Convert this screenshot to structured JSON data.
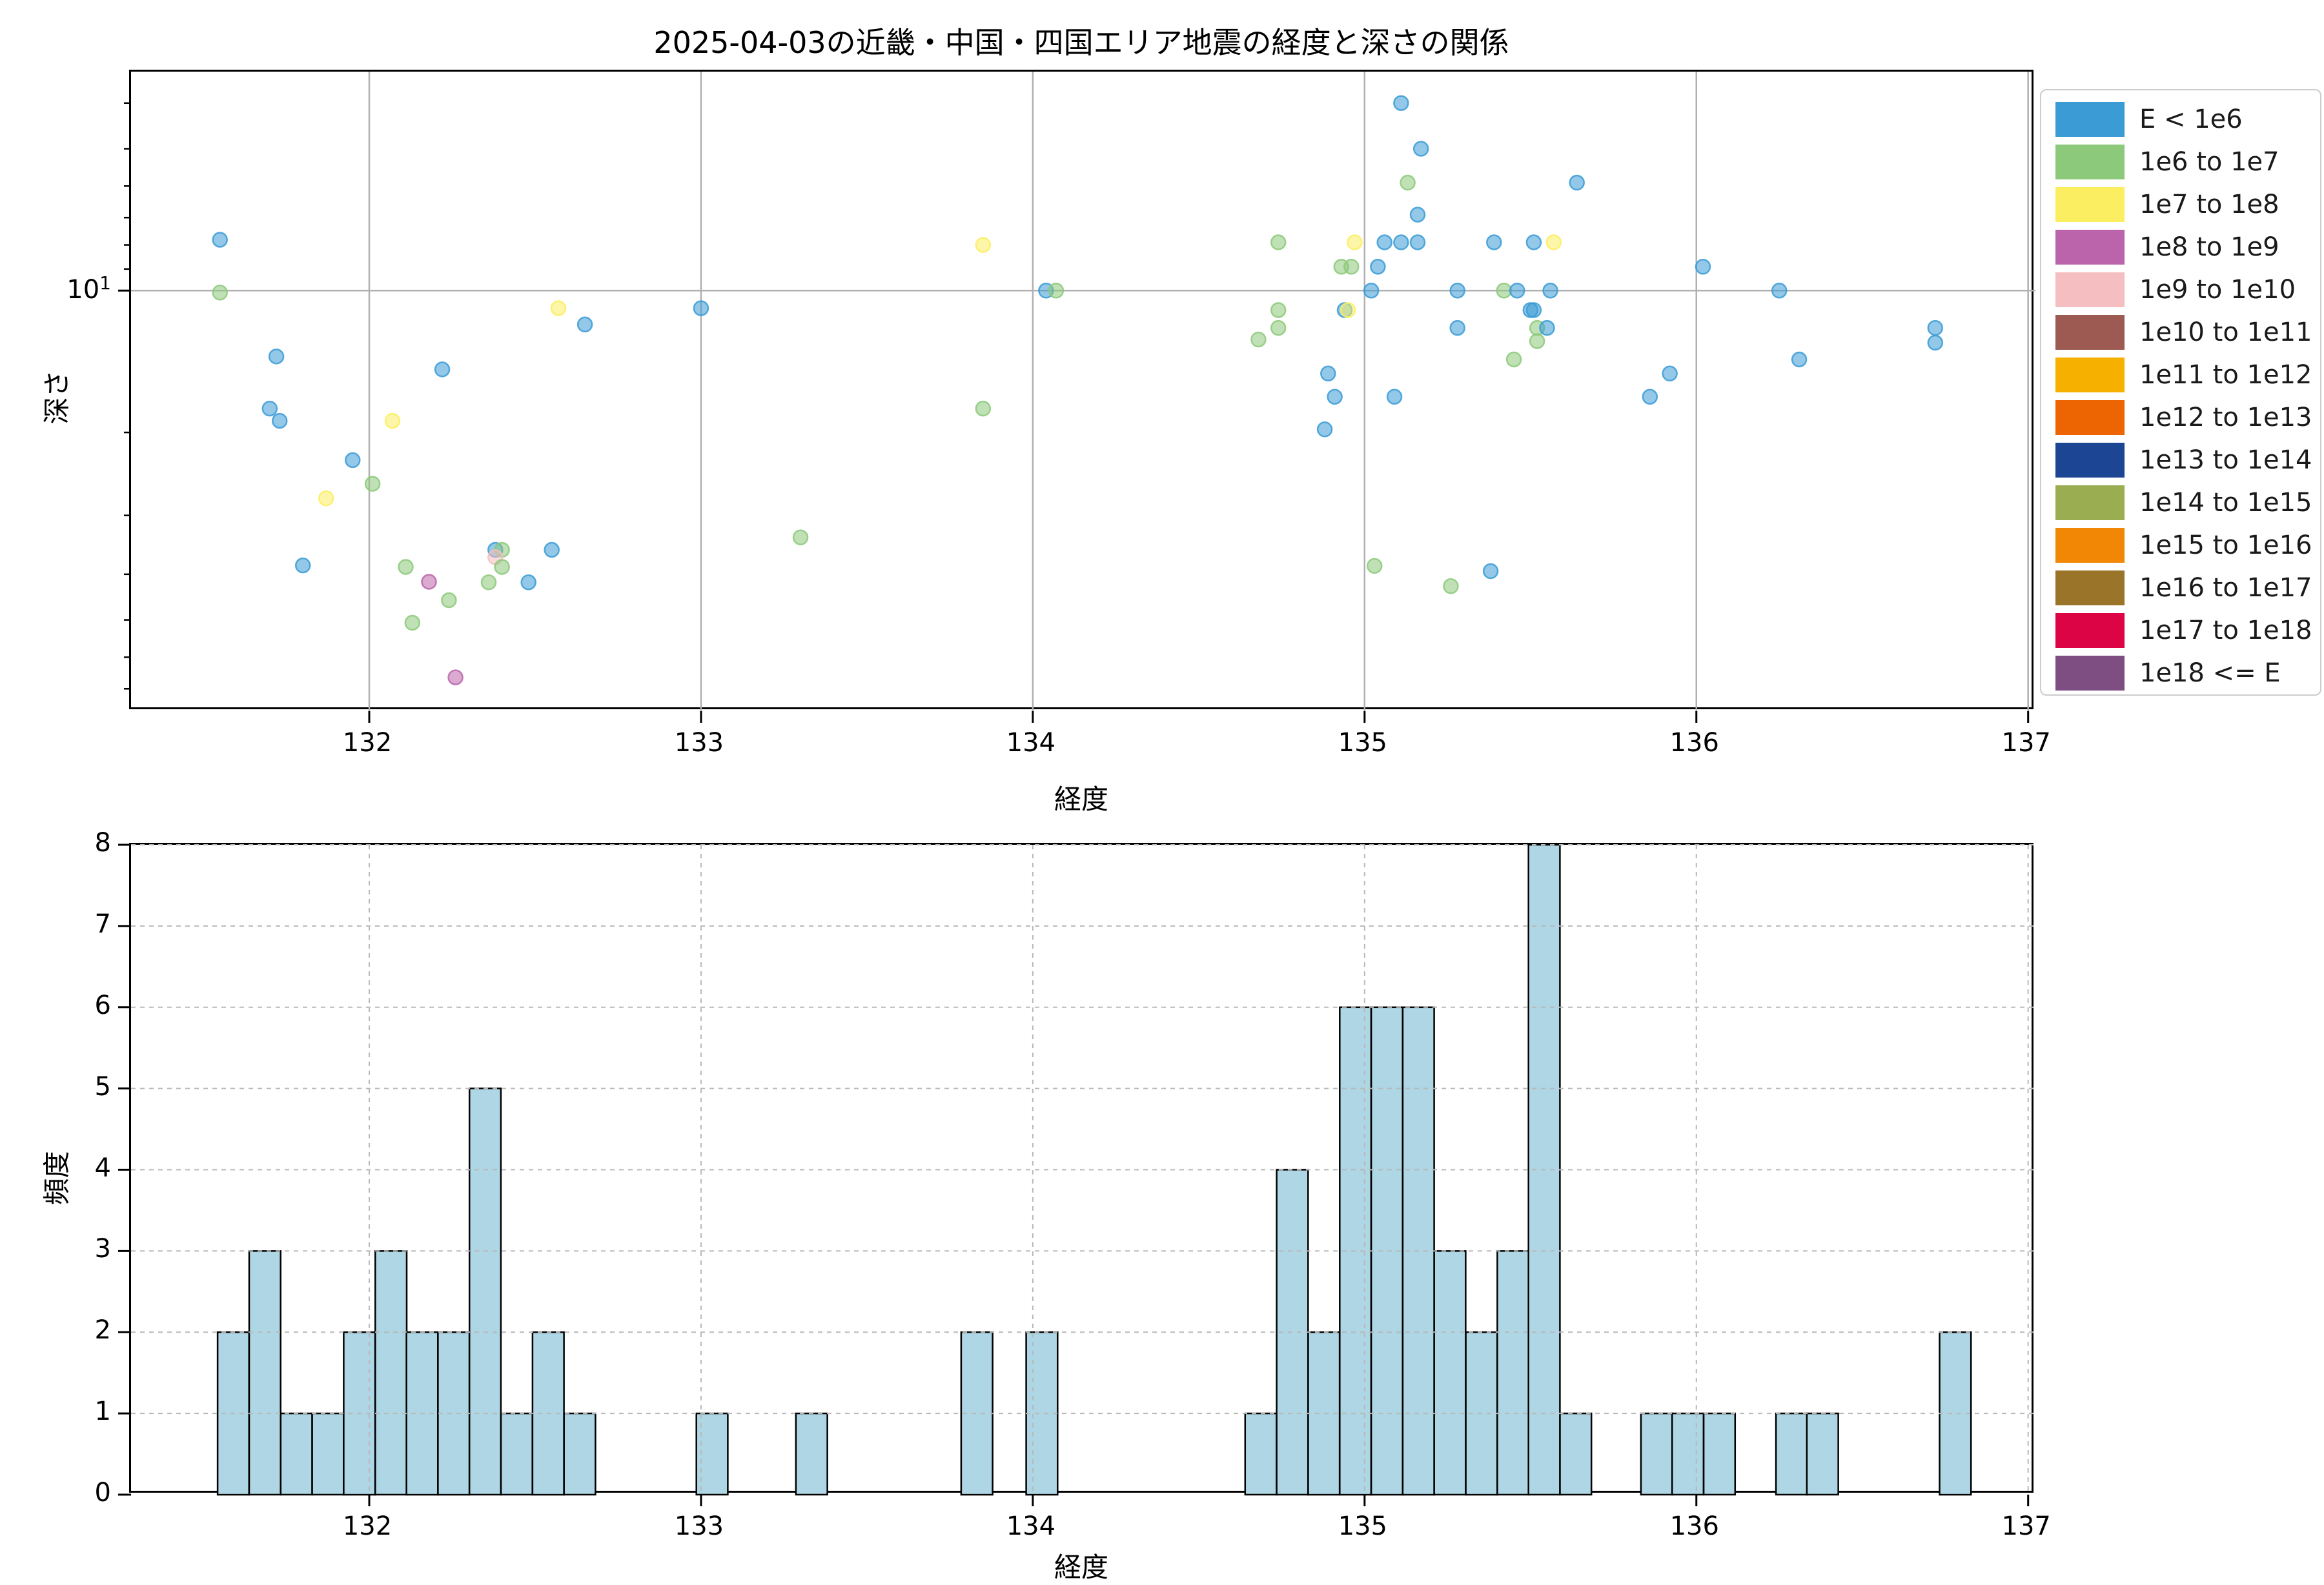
{
  "figure_title": "2025-04-03の近畿・中国・四国エリア地震の経度と深さの関係",
  "legend": {
    "items": [
      {
        "label": "E < 1e6",
        "color": "#3A9BD5"
      },
      {
        "label": "1e6 to 1e7",
        "color": "#8CC97A"
      },
      {
        "label": "1e7 to 1e8",
        "color": "#FBEE60"
      },
      {
        "label": "1e8 to 1e9",
        "color": "#BB64AC"
      },
      {
        "label": "1e9 to 1e10",
        "color": "#F5BEC0"
      },
      {
        "label": "1e10 to 1e11",
        "color": "#9D5A52"
      },
      {
        "label": "1e11 to 1e12",
        "color": "#F6B100"
      },
      {
        "label": "1e12 to 1e13",
        "color": "#EC6502"
      },
      {
        "label": "1e13 to 1e14",
        "color": "#1C4693"
      },
      {
        "label": "1e14 to 1e15",
        "color": "#9AAD51"
      },
      {
        "label": "1e15 to 1e16",
        "color": "#F28705"
      },
      {
        "label": "1e16 to 1e17",
        "color": "#9A7428"
      },
      {
        "label": "1e17 to 1e18",
        "color": "#DC0445"
      },
      {
        "label": "1e18 <= E",
        "color": "#7E4E82"
      }
    ]
  },
  "chart_data": [
    {
      "type": "scatter",
      "title": "2025-04-03の近畿・中国・四国エリア地震の経度と深さの関係",
      "xlabel": "経度",
      "ylabel": "深さ",
      "xlim": [
        131.282,
        137.022
      ],
      "x_ticks": [
        132,
        133,
        134,
        135,
        136,
        137
      ],
      "yscale": "log",
      "y_inverted": true,
      "ylim": [
        3.43,
        78.1
      ],
      "y_major_ticks": [
        10
      ],
      "y_major_tick_label": {
        "base": "10",
        "exp": "1"
      },
      "y_minor_ticks": [
        4,
        5,
        6,
        7,
        8,
        9,
        20,
        30,
        40,
        50,
        60,
        70
      ],
      "grid": "solid",
      "grid_color": "#b0b0b0",
      "marker_radius": 11,
      "marker_fill_opacity": 0.55,
      "marker_ring_opacity": 0.85,
      "category_legend_index": [
        0,
        1,
        2,
        3,
        4
      ],
      "points": [
        [
          131.55,
          7.8,
          0
        ],
        [
          131.55,
          10.1,
          1
        ],
        [
          131.72,
          13.8,
          0
        ],
        [
          132.22,
          14.7,
          0
        ],
        [
          132.57,
          10.9,
          2
        ],
        [
          132.65,
          11.8,
          0
        ],
        [
          133.0,
          10.9,
          0
        ],
        [
          133.85,
          8.0,
          2
        ],
        [
          134.04,
          10.0,
          0
        ],
        [
          134.07,
          10.0,
          1
        ],
        [
          134.74,
          7.9,
          1
        ],
        [
          134.97,
          7.9,
          2
        ],
        [
          135.06,
          7.9,
          0
        ],
        [
          135.11,
          7.9,
          0
        ],
        [
          135.16,
          7.9,
          0
        ],
        [
          135.39,
          7.9,
          0
        ],
        [
          135.51,
          7.9,
          0
        ],
        [
          135.57,
          7.9,
          2
        ],
        [
          134.93,
          8.9,
          1
        ],
        [
          134.96,
          8.9,
          1
        ],
        [
          135.04,
          8.9,
          0
        ],
        [
          136.02,
          8.9,
          0
        ],
        [
          135.02,
          10.0,
          0
        ],
        [
          135.28,
          10.0,
          0
        ],
        [
          135.42,
          10.0,
          1
        ],
        [
          135.46,
          10.0,
          0
        ],
        [
          135.56,
          10.0,
          0
        ],
        [
          136.25,
          10.0,
          0
        ],
        [
          134.74,
          11.0,
          1
        ],
        [
          134.94,
          11.0,
          0
        ],
        [
          134.95,
          11.0,
          2
        ],
        [
          135.5,
          11.0,
          0
        ],
        [
          135.51,
          11.0,
          0
        ],
        [
          134.74,
          12.0,
          1
        ],
        [
          135.28,
          12.0,
          0
        ],
        [
          135.52,
          12.0,
          1
        ],
        [
          135.55,
          12.0,
          0
        ],
        [
          136.72,
          12.0,
          0
        ],
        [
          134.68,
          12.7,
          1
        ],
        [
          135.52,
          12.8,
          1
        ],
        [
          136.72,
          12.9,
          0
        ],
        [
          135.45,
          14.0,
          1
        ],
        [
          136.31,
          14.0,
          0
        ],
        [
          134.89,
          15.0,
          0
        ],
        [
          135.92,
          15.0,
          0
        ],
        [
          135.11,
          4.0,
          0
        ],
        [
          135.17,
          5.0,
          0
        ],
        [
          135.13,
          5.9,
          1
        ],
        [
          135.64,
          5.9,
          0
        ],
        [
          135.16,
          6.9,
          0
        ],
        [
          131.7,
          17.8,
          0
        ],
        [
          131.73,
          18.9,
          0
        ],
        [
          131.95,
          22.9,
          0
        ],
        [
          132.07,
          18.9,
          2
        ],
        [
          132.01,
          25.7,
          1
        ],
        [
          131.87,
          27.6,
          2
        ],
        [
          131.8,
          38.3,
          0
        ],
        [
          132.11,
          38.6,
          1
        ],
        [
          132.18,
          41.5,
          3
        ],
        [
          132.24,
          45.4,
          1
        ],
        [
          132.13,
          50.7,
          1
        ],
        [
          132.26,
          66.2,
          3
        ],
        [
          132.36,
          41.6,
          1
        ],
        [
          132.38,
          35.5,
          0
        ],
        [
          132.4,
          35.5,
          1
        ],
        [
          132.38,
          36.8,
          4
        ],
        [
          132.4,
          38.6,
          1
        ],
        [
          132.48,
          41.6,
          0
        ],
        [
          132.55,
          35.5,
          0
        ],
        [
          133.85,
          17.8,
          1
        ],
        [
          133.3,
          33.4,
          1
        ],
        [
          134.91,
          16.8,
          0
        ],
        [
          134.88,
          19.7,
          0
        ],
        [
          135.09,
          16.8,
          0
        ],
        [
          135.03,
          38.4,
          1
        ],
        [
          135.86,
          16.8,
          0
        ],
        [
          135.38,
          39.4,
          0
        ],
        [
          135.26,
          42.4,
          1
        ]
      ],
      "points_note": "each point = [longitude, depth_km, category_index → legend color 0..4]"
    },
    {
      "type": "histogram",
      "xlabel": "経度",
      "ylabel": "頻度",
      "xlim": [
        131.282,
        137.022
      ],
      "x_ticks": [
        132,
        133,
        134,
        135,
        136,
        137
      ],
      "ylim": [
        0,
        8
      ],
      "y_ticks": [
        0,
        1,
        2,
        3,
        4,
        5,
        6,
        7,
        8
      ],
      "grid": "dashed",
      "grid_color": "#b8b8b8",
      "bin_width": 0.0948,
      "bar_color": "#AED6E4",
      "bar_edge_color": "#000000",
      "bars": [
        [
          131.543,
          2
        ],
        [
          131.638,
          3
        ],
        [
          131.733,
          1
        ],
        [
          131.828,
          1
        ],
        [
          131.923,
          2
        ],
        [
          132.018,
          3
        ],
        [
          132.112,
          2
        ],
        [
          132.207,
          2
        ],
        [
          132.302,
          5
        ],
        [
          132.397,
          1
        ],
        [
          132.492,
          2
        ],
        [
          132.587,
          1
        ],
        [
          132.986,
          1
        ],
        [
          133.286,
          1
        ],
        [
          133.784,
          2
        ],
        [
          133.98,
          2
        ],
        [
          134.64,
          1
        ],
        [
          134.735,
          4
        ],
        [
          134.83,
          2
        ],
        [
          134.925,
          6
        ],
        [
          135.02,
          6
        ],
        [
          135.115,
          6
        ],
        [
          135.21,
          3
        ],
        [
          135.305,
          2
        ],
        [
          135.4,
          3
        ],
        [
          135.494,
          8
        ],
        [
          135.589,
          1
        ],
        [
          135.833,
          1
        ],
        [
          135.927,
          1
        ],
        [
          136.022,
          1
        ],
        [
          136.24,
          1
        ],
        [
          136.333,
          1
        ],
        [
          136.733,
          2
        ]
      ],
      "bars_note": "each bar = [bin_left_longitude, frequency]"
    }
  ]
}
